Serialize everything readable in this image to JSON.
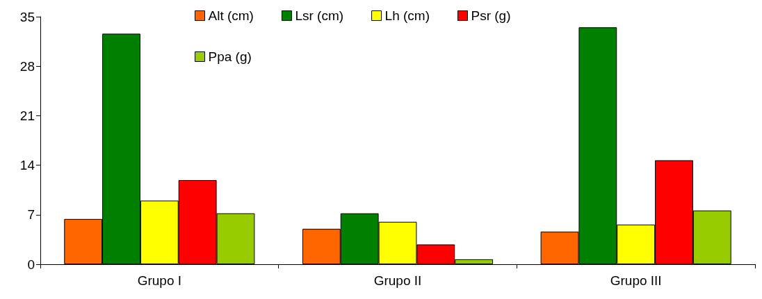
{
  "chart_data": {
    "type": "bar",
    "categories": [
      "Grupo I",
      "Grupo II",
      "Grupo III"
    ],
    "series": [
      {
        "name": "Alt (cm)",
        "color": "#ff6600",
        "values": [
          6.4,
          5.0,
          4.6
        ]
      },
      {
        "name": "Lsr (cm)",
        "color": "#008000",
        "values": [
          32.6,
          7.2,
          33.5
        ]
      },
      {
        "name": "Lh (cm)",
        "color": "#ffff00",
        "values": [
          9.0,
          6.0,
          5.6
        ]
      },
      {
        "name": "Psr (g)",
        "color": "#ff0000",
        "values": [
          11.9,
          2.8,
          14.7
        ]
      },
      {
        "name": "Ppa (g)",
        "color": "#99cc00",
        "values": [
          7.2,
          0.7,
          7.6
        ]
      }
    ],
    "ylim": [
      0,
      35
    ],
    "yticks": [
      0,
      7,
      14,
      21,
      28,
      35
    ],
    "grid": false,
    "legend": "top"
  }
}
